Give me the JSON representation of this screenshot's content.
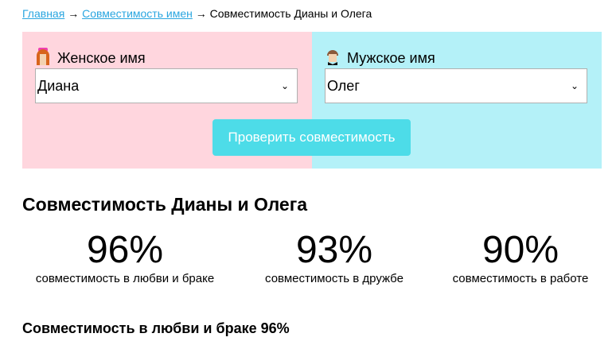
{
  "breadcrumb": {
    "home": "Главная",
    "section": "Совместимость имен",
    "current": "Совместимость Дианы и Олега",
    "sep": "→"
  },
  "form": {
    "female_label": "Женское имя",
    "female_value": "Диана",
    "male_label": "Мужское имя",
    "male_value": "Олег",
    "submit": "Проверить совместимость"
  },
  "result": {
    "title": "Совместимость Дианы и Олега",
    "stats": [
      {
        "value": "96%",
        "label": "совместимость в любви и браке"
      },
      {
        "value": "93%",
        "label": "совместимость в дружбе"
      },
      {
        "value": "90%",
        "label": "совместимость в работе"
      }
    ],
    "subtitle": "Совместимость в любви и браке 96%"
  },
  "colors": {
    "female_bg": "#ffd6de",
    "male_bg": "#b4f1f8",
    "button": "#4ddce8",
    "link": "#2aa6e0"
  }
}
